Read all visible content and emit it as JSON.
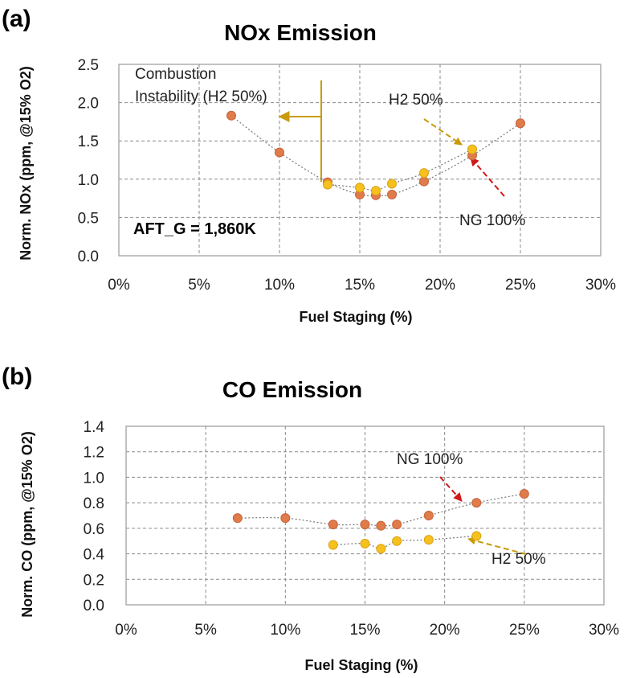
{
  "colors": {
    "ng": "#E07B4A",
    "h2": "#F7C11D",
    "gold_arrow": "#C89B0A",
    "red_arrow": "#D01818",
    "grid": "#8a8a8a"
  },
  "chart_data": [
    {
      "type": "scatter",
      "panel_label": "(a)",
      "title": "NOx Emission",
      "xlabel": "Fuel Staging (%)",
      "ylabel": "Norm. NOx (ppm, @15% O2)",
      "xlim": [
        0,
        30
      ],
      "ylim": [
        0,
        2.5
      ],
      "x_ticks": [
        "0%",
        "5%",
        "10%",
        "15%",
        "20%",
        "25%",
        "30%"
      ],
      "y_ticks": [
        "0.0",
        "0.5",
        "1.0",
        "1.5",
        "2.0",
        "2.5"
      ],
      "grid": true,
      "series": [
        {
          "name": "NG 100%",
          "color": "ng",
          "x": [
            7,
            10,
            13,
            15,
            16,
            17,
            19,
            22,
            25
          ],
          "y": [
            1.83,
            1.35,
            0.96,
            0.8,
            0.79,
            0.8,
            0.97,
            1.31,
            1.73
          ]
        },
        {
          "name": "H2 50%",
          "color": "h2",
          "x": [
            13,
            15,
            16,
            17,
            19,
            22
          ],
          "y": [
            0.93,
            0.89,
            0.85,
            0.94,
            1.08,
            1.39
          ]
        }
      ],
      "annotations": {
        "instability_line1": "Combustion",
        "instability_line2": "Instability (H2 50%)",
        "h2_label": "H2 50%",
        "ng_label": "NG 100%",
        "aft": "AFT_G = 1,860K"
      }
    },
    {
      "type": "scatter",
      "panel_label": "(b)",
      "title": "CO Emission",
      "xlabel": "Fuel Staging (%)",
      "ylabel": "Norm. CO (ppm, @15% O2)",
      "xlim": [
        0,
        30
      ],
      "ylim": [
        0,
        1.4
      ],
      "x_ticks": [
        "0%",
        "5%",
        "10%",
        "15%",
        "20%",
        "25%",
        "30%"
      ],
      "y_ticks": [
        "0.0",
        "0.2",
        "0.4",
        "0.6",
        "0.8",
        "1.0",
        "1.2",
        "1.4"
      ],
      "grid": true,
      "series": [
        {
          "name": "NG 100%",
          "color": "ng",
          "x": [
            7,
            10,
            13,
            15,
            16,
            17,
            19,
            22,
            25
          ],
          "y": [
            0.68,
            0.68,
            0.63,
            0.63,
            0.62,
            0.63,
            0.7,
            0.8,
            0.87
          ]
        },
        {
          "name": "H2 50%",
          "color": "h2",
          "x": [
            13,
            15,
            16,
            17,
            19,
            22
          ],
          "y": [
            0.47,
            0.48,
            0.44,
            0.5,
            0.51,
            0.54
          ]
        }
      ],
      "annotations": {
        "ng_label": "NG 100%",
        "h2_label": "H2 50%"
      }
    }
  ]
}
